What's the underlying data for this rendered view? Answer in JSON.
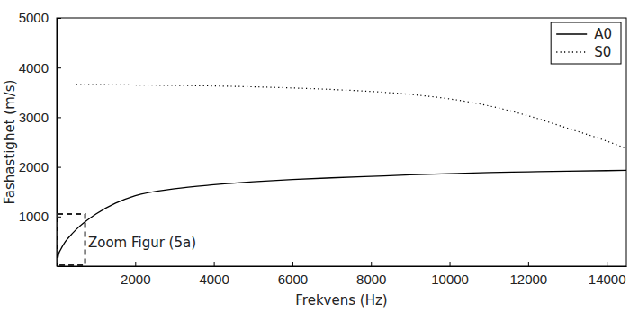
{
  "chart_data": {
    "type": "line",
    "x_label": "Frekvens (Hz)",
    "y_label": "Fashastighet (m/s)",
    "xlim": [
      0,
      14500
    ],
    "ylim": [
      0,
      5000
    ],
    "xticks": [
      2000,
      4000,
      6000,
      8000,
      10000,
      12000,
      14000
    ],
    "yticks": [
      1000,
      2000,
      3000,
      4000,
      5000
    ],
    "grid": false,
    "legend": "upper right",
    "series": [
      {
        "name": "A0",
        "color": "#000000",
        "line_style": "solid",
        "x": [
          0,
          50,
          100,
          200,
          300,
          500,
          1000,
          1500,
          2000,
          3000,
          4000,
          5000,
          6000,
          7000,
          8000,
          9000,
          10000,
          11000,
          12000,
          13000,
          14000,
          14500
        ],
        "values": [
          0,
          240,
          330,
          470,
          570,
          740,
          1050,
          1270,
          1420,
          1560,
          1640,
          1700,
          1745,
          1780,
          1810,
          1840,
          1865,
          1885,
          1900,
          1915,
          1925,
          1930
        ]
      },
      {
        "name": "S0",
        "color": "#000000",
        "line_style": "dotted",
        "x": [
          500,
          2000,
          4000,
          6000,
          7000,
          8000,
          9000,
          10000,
          11000,
          12000,
          13000,
          14000,
          14500
        ],
        "values": [
          3660,
          3650,
          3630,
          3590,
          3560,
          3520,
          3460,
          3370,
          3230,
          3030,
          2780,
          2520,
          2370
        ]
      }
    ],
    "zoom_box": {
      "x": [
        0,
        700
      ],
      "y": [
        0,
        1050
      ]
    },
    "annotations": [
      {
        "text": "Zoom Figur (5a)",
        "x": 800,
        "y": 470
      }
    ]
  }
}
